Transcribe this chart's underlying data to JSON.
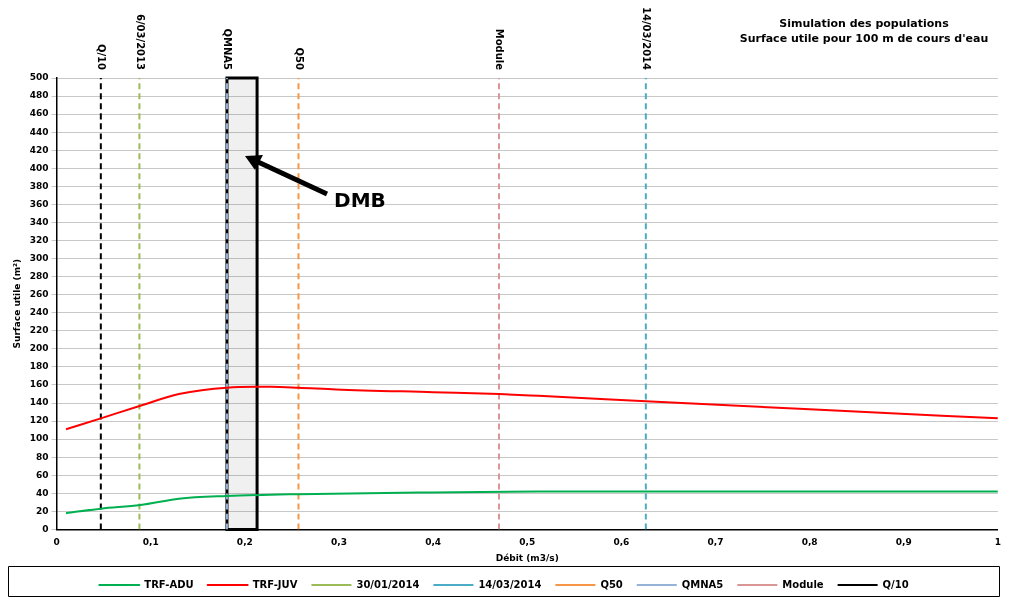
{
  "chart_data": {
    "type": "line",
    "title": "Simulation des populations",
    "subtitle": "Surface utile pour 100 m de cours d'eau",
    "xlabel": "Débit (m3/s)",
    "ylabel": "Surface utile (m²)",
    "xlim": [
      0,
      1
    ],
    "xticks": [
      0,
      {
        "value": 0.1,
        "label": "0,1"
      },
      {
        "value": 0.2,
        "label": "0,2"
      },
      {
        "value": 0.3,
        "label": "0,3"
      },
      {
        "value": 0.4,
        "label": "0,4"
      },
      {
        "value": 0.5,
        "label": "0,5"
      },
      {
        "value": 0.6,
        "label": "0,6"
      },
      {
        "value": 0.7,
        "label": "0,7"
      },
      {
        "value": 0.8,
        "label": "0,8"
      },
      {
        "value": 0.9,
        "label": "0,9"
      },
      1
    ],
    "ylim": [
      0,
      500
    ],
    "yticks": [
      0,
      20,
      40,
      60,
      80,
      100,
      120,
      140,
      160,
      180,
      200,
      220,
      240,
      260,
      280,
      300,
      320,
      340,
      360,
      380,
      400,
      420,
      440,
      460,
      480,
      500
    ],
    "grid": "y",
    "legend": "bottom",
    "marker": "none",
    "series": [
      {
        "name": "TRF-ADU",
        "color": "#00b050",
        "line_style": "solid",
        "x": [
          0.01,
          0.047,
          0.089,
          0.13,
          0.181,
          0.257,
          0.4,
          0.512,
          0.626,
          0.8,
          1
        ],
        "values": [
          18,
          23,
          27,
          34,
          37,
          39,
          41,
          42,
          42,
          42,
          42
        ]
      },
      {
        "name": "TRF-JUV",
        "color": "#ff0000",
        "line_style": "solid",
        "x": [
          0.01,
          0.047,
          0.089,
          0.13,
          0.181,
          0.228,
          0.257,
          0.297,
          0.4,
          0.47,
          0.512,
          0.626,
          0.8,
          1
        ],
        "values": [
          111,
          123,
          137,
          150,
          157,
          158,
          157,
          155,
          152,
          150,
          148,
          142,
          133,
          123
        ]
      },
      {
        "name": "30/01/2014",
        "color": "#9bbb59",
        "line_style": "dashed",
        "x": [
          0.088,
          0.088
        ],
        "values": [
          0,
          500
        ]
      },
      {
        "name": "14/03/2014",
        "color": "#4bacc6",
        "line_style": "dashed",
        "x": [
          0.626,
          0.626
        ],
        "values": [
          0,
          500
        ]
      },
      {
        "name": "Q50",
        "color": "#f79646",
        "line_style": "dashed",
        "x": [
          0.257,
          0.257
        ],
        "values": [
          0,
          500
        ]
      },
      {
        "name": "QMNA5",
        "color": "#95b3d7",
        "line_style": "dashed",
        "x": [
          0.181,
          0.181
        ],
        "values": [
          0,
          500
        ]
      },
      {
        "name": "Module",
        "color": "#d99694",
        "line_style": "dashed",
        "x": [
          0.47,
          0.47
        ],
        "values": [
          0,
          500
        ]
      },
      {
        "name": "Q/10",
        "color": "#000000",
        "line_style": "dashed",
        "x": [
          0.047,
          0.047
        ],
        "values": [
          0,
          500
        ]
      }
    ],
    "bands": [
      {
        "axis": "x",
        "from": 0.181,
        "to": 0.213,
        "label": "DMB",
        "color": "#000000"
      }
    ],
    "annotations": [
      {
        "text": "Q/10",
        "x": 0.047,
        "y": 500
      },
      {
        "text": "6/03/2013",
        "x": 0.088,
        "y": 500
      },
      {
        "text": "QMNA5",
        "x": 0.181,
        "y": 500
      },
      {
        "text": "Q50",
        "x": 0.257,
        "y": 500
      },
      {
        "text": "Module",
        "x": 0.47,
        "y": 500
      },
      {
        "text": "14/03/2014",
        "x": 0.626,
        "y": 500
      }
    ]
  }
}
